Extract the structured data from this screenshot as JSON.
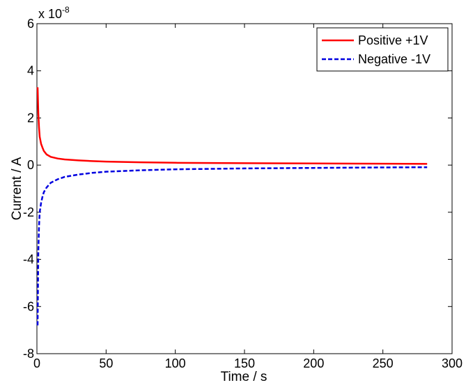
{
  "chart_data": {
    "type": "line",
    "xlabel": "Time / s",
    "ylabel": "Current / A",
    "xlim": [
      0,
      300
    ],
    "ylim": [
      -8,
      6
    ],
    "y_exponent_base": "x 10",
    "y_exponent_power": "-8",
    "x_ticks": [
      0,
      50,
      100,
      150,
      200,
      250,
      300
    ],
    "y_ticks": [
      -8,
      -6,
      -4,
      -2,
      0,
      2,
      4,
      6
    ],
    "grid": false,
    "legend_position": "top-right",
    "series": [
      {
        "name": "Positive +1V",
        "color": "#ff0000",
        "style": "solid",
        "x": [
          0.5,
          1,
          1.5,
          2,
          3,
          4,
          5,
          7,
          10,
          15,
          20,
          30,
          40,
          50,
          75,
          100,
          150,
          200,
          250,
          282
        ],
        "y": [
          3.3,
          2.2,
          1.6,
          1.2,
          0.9,
          0.75,
          0.6,
          0.45,
          0.35,
          0.28,
          0.24,
          0.2,
          0.17,
          0.15,
          0.12,
          0.1,
          0.08,
          0.07,
          0.06,
          0.05
        ]
      },
      {
        "name": "Negative -1V",
        "color": "#0000e0",
        "style": "dashed",
        "x": [
          0.5,
          1,
          1.5,
          2,
          3,
          4,
          5,
          7,
          10,
          15,
          20,
          30,
          40,
          50,
          75,
          100,
          150,
          200,
          250,
          282
        ],
        "y": [
          -6.8,
          -3.7,
          -2.6,
          -2.0,
          -1.6,
          -1.35,
          -1.15,
          -0.95,
          -0.75,
          -0.6,
          -0.5,
          -0.4,
          -0.33,
          -0.28,
          -0.22,
          -0.18,
          -0.14,
          -0.12,
          -0.1,
          -0.09
        ]
      }
    ]
  }
}
